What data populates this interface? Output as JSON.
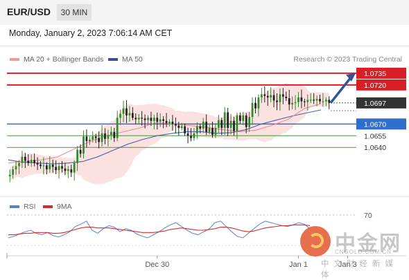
{
  "header": {
    "pair": "EUR/USD",
    "timeframe": "30 MIN"
  },
  "timestamp": "Monday, January 2, 2023 7:06:14 AM CET",
  "legend": {
    "ma20": "MA 20 + Bollinger Bands",
    "ma50": "MA 50",
    "credit": "Research © 2023 Trading Central"
  },
  "rsi_legend": {
    "rsi": "RSI",
    "ma": "9MA"
  },
  "colors": {
    "resistance": "#d81f26",
    "support_main": "#2f6ecb",
    "support": "#3c9a3c",
    "bull": "#2e8b2e",
    "bear": "#222222",
    "ma20": "#e88a8a",
    "ma50": "#4a63a8",
    "band": "#fbdcdc",
    "rsi": "#5b7fd1",
    "rsi_ma": "#d32c2c",
    "arrow": "#2f5597"
  },
  "watermark": {
    "brand": "中金网",
    "url": "CNGOLD.COM.CN",
    "sub": "中文财经新媒体"
  },
  "chart_data": {
    "type": "candlestick",
    "title": "EUR/USD",
    "timeframe": "30 MIN",
    "ylim": [
      1.0588,
      1.0742
    ],
    "x_ticks": [
      {
        "label": "Dec 30",
        "index": 48
      },
      {
        "label": "Jan 1",
        "index": 94
      },
      {
        "label": "Jan 3",
        "index": 110
      }
    ],
    "last_price": 1.0697,
    "levels": [
      {
        "value": 1.0735,
        "label": "1.0735",
        "kind": "resistance"
      },
      {
        "value": 1.072,
        "label": "1.0720",
        "kind": "resistance"
      },
      {
        "value": 1.067,
        "label": "1.0670",
        "kind": "support_main"
      },
      {
        "value": 1.0655,
        "label": "1.0655",
        "kind": "support"
      },
      {
        "value": 1.064,
        "label": "1.0640",
        "kind": "support"
      }
    ],
    "forecast": {
      "from": 1.0697,
      "to": 1.0735,
      "direction": "up"
    },
    "series": [
      {
        "name": "EUR/USD",
        "close": [
          1.0605,
          1.0612,
          1.0616,
          1.062,
          1.0628,
          1.0623,
          1.062,
          1.0624,
          1.062,
          1.0618,
          1.0616,
          1.0617,
          1.0612,
          1.0618,
          1.0615,
          1.0611,
          1.0616,
          1.0613,
          1.061,
          1.0612,
          1.0608,
          1.062,
          1.0637,
          1.0632,
          1.0654,
          1.0648,
          1.065,
          1.0654,
          1.0652,
          1.0647,
          1.0658,
          1.0651,
          1.0656,
          1.066,
          1.0652,
          1.0678,
          1.0683,
          1.069,
          1.0681,
          1.0684,
          1.0678,
          1.0676,
          1.0678,
          1.0677,
          1.0675,
          1.0678,
          1.0674,
          1.0678,
          1.0673,
          1.0676,
          1.0674,
          1.0671,
          1.0673,
          1.067,
          1.0668,
          1.0665,
          1.0667,
          1.0658,
          1.0655,
          1.0652,
          1.0658,
          1.0667,
          1.0664,
          1.0673,
          1.066,
          1.0665,
          1.0656,
          1.0665,
          1.0675,
          1.0665,
          1.0685,
          1.0665,
          1.0674,
          1.0661,
          1.0681,
          1.0674,
          1.0681,
          1.0666,
          1.0679,
          1.0697,
          1.069,
          1.0704,
          1.0708,
          1.0706,
          1.0704,
          1.0707,
          1.07,
          1.0698,
          1.0708,
          1.0705,
          1.0703,
          1.0695,
          1.0697,
          1.0698,
          1.0704,
          1.0699,
          1.0698,
          1.0701,
          1.0701,
          1.07,
          1.0702,
          1.0699,
          1.0699,
          1.0701,
          1.0697
        ]
      },
      {
        "name": "MA 20",
        "values": [
          1.062,
          1.0622,
          1.0624,
          1.0628,
          1.0638,
          1.0648,
          1.0655,
          1.066,
          1.0665,
          1.0672,
          1.067,
          1.0668,
          1.0666,
          1.0663,
          1.066,
          1.0662,
          1.0668,
          1.0676,
          1.069,
          1.0696
        ]
      },
      {
        "name": "MA 50",
        "values": [
          1.0624,
          1.0621,
          1.062,
          1.0619,
          1.062,
          1.0622,
          1.0628,
          1.0636,
          1.0644,
          1.065,
          1.0655,
          1.0658,
          1.066,
          1.066,
          1.0658,
          1.0659,
          1.0663,
          1.067,
          1.0675,
          1.068,
          1.0684,
          1.0688
        ]
      },
      {
        "name": "RSI",
        "values": [
          40,
          42,
          45,
          48,
          50,
          46,
          44,
          47,
          43,
          41,
          44,
          48,
          55,
          58,
          62,
          50,
          46,
          52,
          56,
          54,
          48,
          52,
          50,
          45,
          42,
          40,
          44,
          48,
          53,
          57,
          60,
          55,
          50,
          46,
          44,
          48,
          52,
          60,
          62,
          55,
          48,
          42,
          40,
          46,
          52,
          58,
          62,
          60,
          58,
          56,
          55,
          57,
          60,
          58,
          52
        ]
      },
      {
        "name": "9MA",
        "values": [
          44,
          44,
          45,
          46,
          46,
          47,
          47,
          47,
          46,
          46,
          47,
          49,
          51,
          53,
          54,
          54,
          53,
          53,
          53,
          52,
          51,
          50,
          49,
          48,
          47,
          47,
          47,
          48,
          49,
          51,
          52,
          53,
          52,
          51,
          50,
          50,
          51,
          52,
          54,
          54,
          53,
          51,
          49,
          48,
          49,
          51,
          53,
          54,
          55,
          56,
          56,
          57,
          57,
          57,
          56
        ]
      }
    ],
    "rsi_levels": [
      {
        "value": 70,
        "label": "70"
      }
    ]
  }
}
